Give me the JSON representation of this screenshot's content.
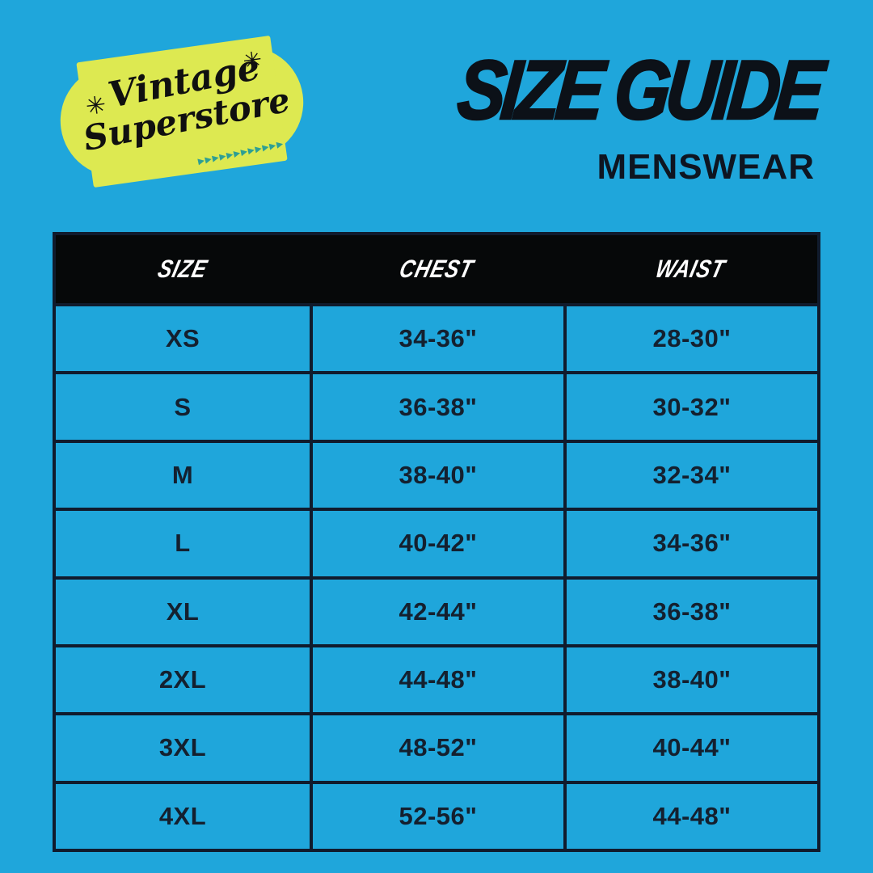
{
  "colors": {
    "background": "#1fa6db",
    "badge_yellow": "#dde951",
    "arrow_teal": "#2e9f93",
    "table_line": "#101b2d",
    "cell_text": "#14202f",
    "header_band": "#060809",
    "header_text": "#ffffff"
  },
  "logo": {
    "line1": "Vintage",
    "line2": "Superstore",
    "sparkle": "✳",
    "arrows": "▸▸▸▸▸▸▸▸▸▸▸▸"
  },
  "header": {
    "title": "SIZE GUIDE",
    "subtitle": "MENSWEAR"
  },
  "table": {
    "columns": [
      "SIZE",
      "CHEST",
      "WAIST"
    ],
    "rows": [
      {
        "size": "XS",
        "chest": "34-36\"",
        "waist": "28-30\""
      },
      {
        "size": "S",
        "chest": "36-38\"",
        "waist": "30-32\""
      },
      {
        "size": "M",
        "chest": "38-40\"",
        "waist": "32-34\""
      },
      {
        "size": "L",
        "chest": "40-42\"",
        "waist": "34-36\""
      },
      {
        "size": "XL",
        "chest": "42-44\"",
        "waist": "36-38\""
      },
      {
        "size": "2XL",
        "chest": "44-48\"",
        "waist": "38-40\""
      },
      {
        "size": "3XL",
        "chest": "48-52\"",
        "waist": "40-44\""
      },
      {
        "size": "4XL",
        "chest": "52-56\"",
        "waist": "44-48\""
      }
    ]
  }
}
